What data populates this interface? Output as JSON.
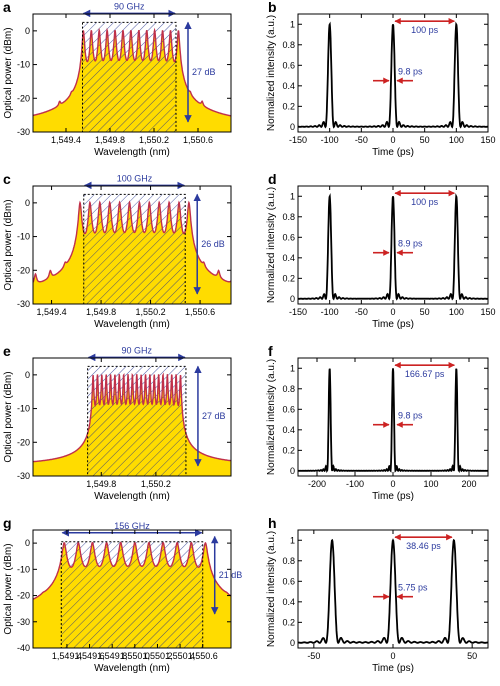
{
  "chart_data": [
    {
      "id": "a",
      "panel_label": "a",
      "type": "line",
      "title": "",
      "xlabel": "Wavelength (nm)",
      "ylabel": "Optical power (dBm)",
      "xlim": [
        1549.1,
        1550.9
      ],
      "ylim": [
        -30,
        5
      ],
      "xticks": [
        1549.4,
        1549.8,
        1550.2,
        1550.6
      ],
      "xtick_labels": [
        "1,549.4",
        "1,549.8",
        "1,550.2",
        "1,550.6"
      ],
      "yticks": [
        0,
        -10,
        -20,
        -30
      ],
      "comb": {
        "center": 1549.99,
        "num_lines": 13,
        "spacing_nm": 0.072,
        "floor": -28.5,
        "peak": 0,
        "side_lines": 2,
        "side_peak": -27
      },
      "hatched_band": {
        "x_start": 1549.55,
        "x_end": 1550.4,
        "top": 2.5
      },
      "bandwidth_label": "90 GHz",
      "dynamic_range_label": "27 dB"
    },
    {
      "id": "b",
      "panel_label": "b",
      "type": "line",
      "title": "",
      "xlabel": "Time (ps)",
      "ylabel": "Normalized intensity (a.u.)",
      "xlim": [
        -150,
        150
      ],
      "ylim": [
        -0.05,
        1.1
      ],
      "xticks": [
        -150,
        -100,
        -50,
        0,
        50,
        100,
        150
      ],
      "yticks": [
        0,
        0.2,
        0.4,
        0.6,
        0.8,
        1
      ],
      "pulse_positions": [
        -100,
        0,
        100
      ],
      "pulse_fwhm": 9.8,
      "period_label": "100 ps",
      "width_label": "9.8 ps"
    },
    {
      "id": "c",
      "panel_label": "c",
      "type": "line",
      "title": "",
      "xlabel": "Wavelength (nm)",
      "ylabel": "Optical power (dBm)",
      "xlim": [
        1549.25,
        1550.85
      ],
      "ylim": [
        -30,
        5
      ],
      "xticks": [
        1549.4,
        1549.8,
        1550.2,
        1550.6
      ],
      "xtick_labels": [
        "1,549.4",
        "1,549.8",
        "1,550.2",
        "1,550.6"
      ],
      "yticks": [
        0,
        -10,
        -20,
        -30
      ],
      "comb": {
        "center": 1550.07,
        "num_lines": 12,
        "spacing_nm": 0.08,
        "floor": -29.5,
        "peak": 0,
        "side_lines": 4,
        "side_peak": -24
      },
      "hatched_band": {
        "x_start": 1549.66,
        "x_end": 1550.48,
        "top": 2.5
      },
      "bandwidth_label": "100 GHz",
      "dynamic_range_label": "26 dB"
    },
    {
      "id": "d",
      "panel_label": "d",
      "type": "line",
      "title": "",
      "xlabel": "Time (ps)",
      "ylabel": "Normalized intensity (a.u.)",
      "xlim": [
        -150,
        150
      ],
      "ylim": [
        -0.05,
        1.1
      ],
      "xticks": [
        -150,
        -100,
        -50,
        0,
        50,
        100,
        150
      ],
      "yticks": [
        0,
        0.2,
        0.4,
        0.6,
        0.8,
        1
      ],
      "pulse_positions": [
        -100,
        0,
        100
      ],
      "pulse_fwhm": 8.9,
      "period_label": "100 ps",
      "width_label": "8.9 ps"
    },
    {
      "id": "e",
      "panel_label": "e",
      "type": "line",
      "title": "",
      "xlabel": "Wavelength (nm)",
      "ylabel": "Optical power (dBm)",
      "xlim": [
        1549.3,
        1550.75
      ],
      "ylim": [
        -30,
        5
      ],
      "xticks": [
        1549.8,
        1550.2
      ],
      "xtick_labels": [
        "1,549.8",
        "1,550.2"
      ],
      "yticks": [
        0,
        -10,
        -20,
        -30
      ],
      "comb": {
        "center": 1550.06,
        "num_lines": 21,
        "spacing_nm": 0.032,
        "floor": -27,
        "peak": 0,
        "side_lines": 0,
        "side_peak": -27
      },
      "hatched_band": {
        "x_start": 1549.7,
        "x_end": 1550.42,
        "top": 2.5
      },
      "bandwidth_label": "90 GHz",
      "dynamic_range_label": "27 dB"
    },
    {
      "id": "f",
      "panel_label": "f",
      "type": "line",
      "title": "",
      "xlabel": "Time (ps)",
      "ylabel": "Normalized intensity (a.u.)",
      "xlim": [
        -250,
        250
      ],
      "ylim": [
        -0.05,
        1.1
      ],
      "xticks": [
        -200,
        -100,
        0,
        100,
        200
      ],
      "yticks": [
        0,
        0.2,
        0.4,
        0.6,
        0.8,
        1
      ],
      "pulse_positions": [
        -166.67,
        0,
        166.67
      ],
      "pulse_fwhm": 9.8,
      "period_label": "166.67 ps",
      "width_label": "9.8 ps"
    },
    {
      "id": "g",
      "panel_label": "g",
      "type": "line",
      "title": "",
      "xlabel": "Wavelength (nm)",
      "ylabel": "Optical power (dBm)",
      "xlim": [
        1549.1,
        1550.85
      ],
      "ylim": [
        -40,
        5
      ],
      "xticks": [
        1549.4,
        1549.6,
        1549.8,
        1550.0,
        1550.2,
        1550.4,
        1550.6
      ],
      "xtick_labels": [
        "1,549.4",
        "1,549.6",
        "1,549.8",
        "1,550.0",
        "1,550.2",
        "1,550.4",
        "1,550.6"
      ],
      "yticks": [
        0,
        -10,
        -20,
        -30,
        -40
      ],
      "comb": {
        "center": 1550.0,
        "num_lines": 11,
        "spacing_nm": 0.1248,
        "floor": -39,
        "peak": 0,
        "side_lines": 3,
        "side_peak": -30
      },
      "hatched_band": {
        "x_start": 1549.35,
        "x_end": 1550.6,
        "top": 0.5
      },
      "bandwidth_label": "156 GHz",
      "dynamic_range_label": "21 dB"
    },
    {
      "id": "h",
      "panel_label": "h",
      "type": "line",
      "title": "",
      "xlabel": "Time (ps)",
      "ylabel": "Normalized intensity (a.u.)",
      "xlim": [
        -60,
        60
      ],
      "ylim": [
        -0.05,
        1.1
      ],
      "xticks": [
        -50,
        0,
        50
      ],
      "yticks": [
        0,
        0.2,
        0.4,
        0.6,
        0.8,
        1
      ],
      "pulse_positions": [
        -38.46,
        0,
        38.46
      ],
      "pulse_fwhm": 5.75,
      "period_label": "38.46 ps",
      "width_label": "5.75 ps"
    }
  ],
  "colors": {
    "spectrum_line": "#c0304a",
    "spectrum_fill": "#ffdc00",
    "hatch": "#1a2a8a",
    "annotation_blue": "#2b3a9e",
    "annotation_red": "#cc2222",
    "pulse_line": "#000000"
  }
}
